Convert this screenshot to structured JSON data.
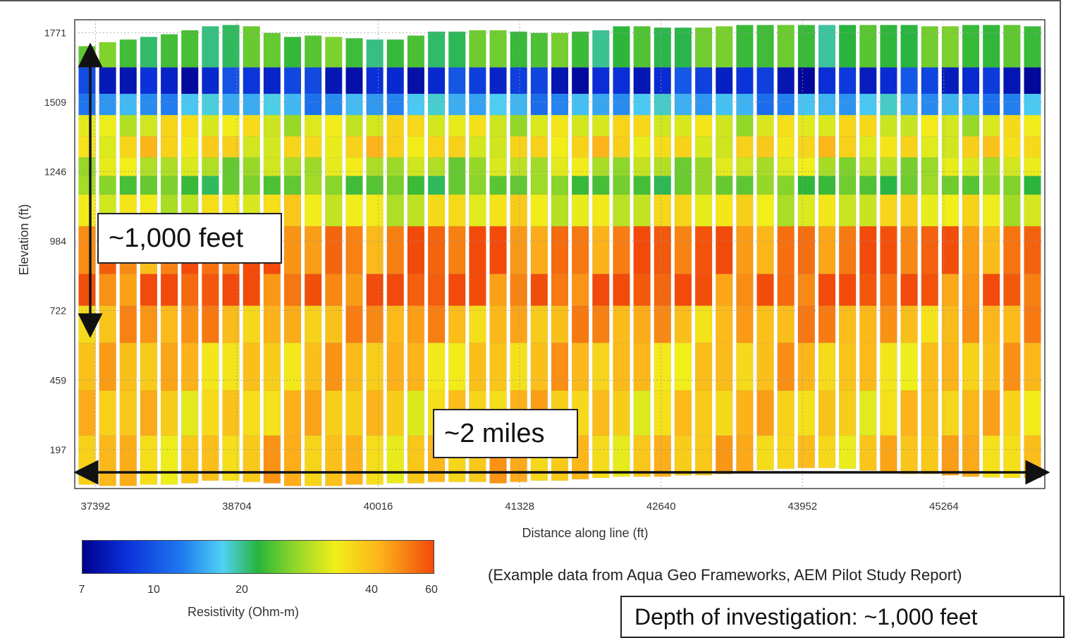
{
  "chart_data": {
    "type": "heatmap",
    "title": "",
    "xlabel": "Distance along line (ft)",
    "ylabel": "Elevation (ft)",
    "x_ticks": [
      "37392",
      "38704",
      "40016",
      "41328",
      "42640",
      "43952",
      "45264"
    ],
    "y_ticks": [
      "1771",
      "1509",
      "1246",
      "984",
      "722",
      "459",
      "197"
    ],
    "xlim": [
      37200,
      46200
    ],
    "ylim": [
      50,
      1820
    ],
    "grid": true,
    "soundings": {
      "count": 47,
      "top_elevation_ft": [
        1720,
        1735,
        1745,
        1755,
        1765,
        1780,
        1795,
        1800,
        1795,
        1770,
        1755,
        1760,
        1755,
        1750,
        1745,
        1745,
        1760,
        1775,
        1775,
        1780,
        1780,
        1775,
        1770,
        1770,
        1775,
        1780,
        1795,
        1795,
        1790,
        1790,
        1790,
        1795,
        1800,
        1805,
        1810,
        1810,
        1820,
        1825,
        1825,
        1820,
        1800,
        1795,
        1795,
        1805,
        1810,
        1805,
        1795
      ],
      "bottom_elevation_ft": [
        65,
        60,
        60,
        65,
        65,
        70,
        80,
        80,
        75,
        70,
        60,
        60,
        60,
        65,
        65,
        70,
        70,
        75,
        75,
        75,
        70,
        75,
        80,
        80,
        85,
        90,
        95,
        95,
        95,
        100,
        100,
        105,
        115,
        120,
        125,
        128,
        128,
        125,
        118,
        110,
        105,
        105,
        100,
        95,
        92,
        90,
        90
      ],
      "layer_boundaries_ft": [
        1800,
        1640,
        1540,
        1460,
        1380,
        1300,
        1230,
        1160,
        1040,
        860,
        740,
        600,
        420,
        250,
        50
      ],
      "layer_resistivity_ohm_m": [
        22,
        9,
        14,
        34,
        38,
        30,
        24,
        35,
        54,
        57,
        46,
        42,
        41,
        42
      ]
    },
    "colorbar": {
      "label": "Resistivity (Ohm-m)",
      "ticks": [
        "7",
        "10",
        "20",
        "40",
        "60"
      ],
      "colors": [
        "#00008c",
        "#0a2ed8",
        "#1e78f0",
        "#4fd2f2",
        "#28b43c",
        "#8cd62a",
        "#f2ee1a",
        "#fcb21a",
        "#f24a0a"
      ]
    },
    "annotations": {
      "depth_callout": "~1,000 feet",
      "distance_callout": "~2 miles"
    }
  },
  "source_note": "(Example data from Aqua Geo Frameworks, AEM Pilot Study Report)",
  "doi_box": "Depth of investigation: ~1,000 feet"
}
